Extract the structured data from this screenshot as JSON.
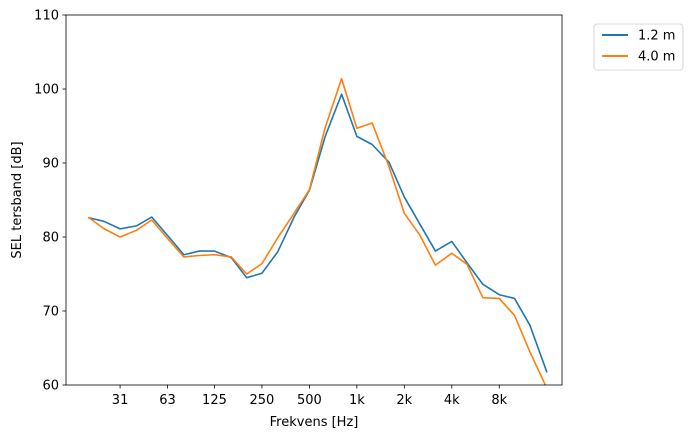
{
  "chart_data": {
    "type": "line",
    "xlabel": "Frekvens [Hz]",
    "ylabel": "SEL tersband [dB]",
    "x_scale": "log",
    "x": [
      20,
      25,
      31.5,
      40,
      50,
      63,
      80,
      100,
      125,
      160,
      200,
      250,
      315,
      400,
      500,
      630,
      800,
      1000,
      1250,
      1600,
      2000,
      2500,
      3150,
      4000,
      5000,
      6300,
      8000,
      10000,
      12500,
      16000
    ],
    "xticks": [
      {
        "value": 31.5,
        "label": "31"
      },
      {
        "value": 63,
        "label": "63"
      },
      {
        "value": 125,
        "label": "125"
      },
      {
        "value": 250,
        "label": "250"
      },
      {
        "value": 500,
        "label": "500"
      },
      {
        "value": 1000,
        "label": "1k"
      },
      {
        "value": 2000,
        "label": "2k"
      },
      {
        "value": 4000,
        "label": "4k"
      },
      {
        "value": 8000,
        "label": "8k"
      }
    ],
    "xlim": [
      14.3,
      20000
    ],
    "ylim": [
      60,
      110
    ],
    "yticks": [
      60,
      70,
      80,
      90,
      100,
      110
    ],
    "grid": false,
    "legend_position": "outside-top-right",
    "series": [
      {
        "name": "1.2 m",
        "color": "#1f77b4",
        "values": [
          82.6,
          82.1,
          81.1,
          81.5,
          82.7,
          80.2,
          77.6,
          78.1,
          78.1,
          77.2,
          74.5,
          75.1,
          78.0,
          82.7,
          86.3,
          93.6,
          99.3,
          93.6,
          92.5,
          90.1,
          85.4,
          81.8,
          78.1,
          79.4,
          76.5,
          73.6,
          72.2,
          71.7,
          68.1,
          61.8
        ]
      },
      {
        "name": "4.0 m",
        "color": "#ff7f0e",
        "values": [
          82.6,
          81.1,
          80.0,
          80.9,
          82.3,
          79.8,
          77.3,
          77.5,
          77.6,
          77.3,
          75.0,
          76.4,
          79.9,
          83.2,
          86.4,
          94.8,
          101.4,
          94.7,
          95.4,
          89.5,
          83.2,
          80.3,
          76.2,
          77.8,
          76.3,
          71.8,
          71.7,
          69.4,
          64.5,
          59.6
        ]
      }
    ]
  }
}
